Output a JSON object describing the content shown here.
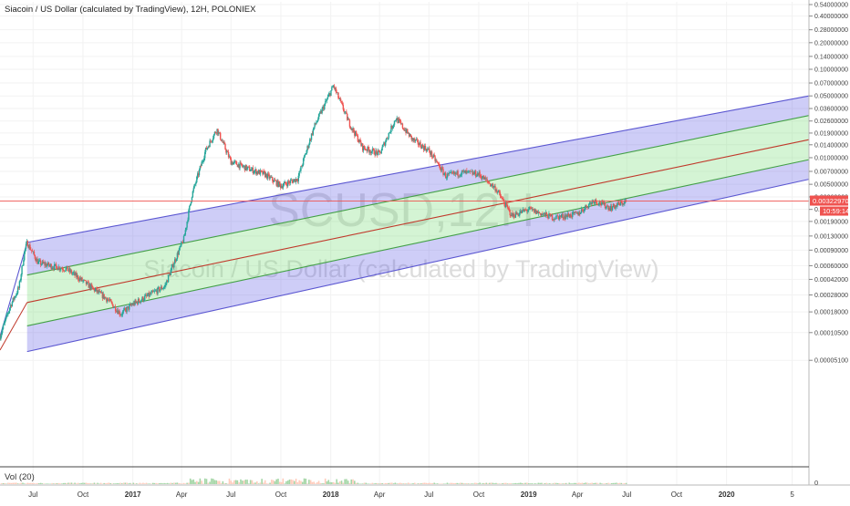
{
  "header": {
    "title": "Siacoin / US Dollar (calculated by TradingView), 12H, POLONIEX"
  },
  "watermark": {
    "symbol": "SCUSD,12H",
    "name": "Siacoin / US Dollar (calculated by TradingView)"
  },
  "price_tags": {
    "last_price": "0.00322970",
    "countdown": "10:59:14",
    "last_color": "#ef5350"
  },
  "volume_pane": {
    "label": "Vol (20)",
    "zero_label": "0"
  },
  "colors": {
    "channel_outer": "#5b57d1",
    "channel_inner": "#43a047",
    "channel_mid": "#c0392b",
    "candle_up": "#26a69a",
    "candle_down": "#ef5350",
    "outer_fill": "rgba(92,88,230,0.30)",
    "inner_fill": "rgba(120,220,120,0.32)"
  },
  "chart_data": {
    "type": "candlestick",
    "symbol": "SCUSD",
    "interval": "12H",
    "exchange": "POLONIEX",
    "y_scale": "log",
    "ylim": [
      3.5e-06,
      0.58
    ],
    "y_ticks": [
      "0.54000000",
      "0.40000000",
      "0.28000000",
      "0.20000000",
      "0.14000000",
      "0.10000000",
      "0.07000000",
      "0.05000000",
      "0.03600000",
      "0.02600000",
      "0.01900000",
      "0.01400000",
      "0.01000000",
      "0.00700000",
      "0.00500000",
      "0.00360000",
      "0.00260000",
      "0.00190000",
      "0.00130000",
      "0.00090000",
      "0.00060000",
      "0.00042000",
      "0.00028000",
      "0.00018000",
      "0.00010500",
      "0.00005100"
    ],
    "x_ticks": [
      {
        "label": "Jul",
        "date": "2016-07-01"
      },
      {
        "label": "Oct",
        "date": "2016-10-01"
      },
      {
        "label": "2017",
        "date": "2017-01-01"
      },
      {
        "label": "Apr",
        "date": "2017-04-01"
      },
      {
        "label": "Jul",
        "date": "2017-07-01"
      },
      {
        "label": "Oct",
        "date": "2017-10-01"
      },
      {
        "label": "2018",
        "date": "2018-01-01"
      },
      {
        "label": "Apr",
        "date": "2018-04-01"
      },
      {
        "label": "Jul",
        "date": "2018-07-01"
      },
      {
        "label": "Oct",
        "date": "2018-10-01"
      },
      {
        "label": "2019",
        "date": "2019-01-01"
      },
      {
        "label": "Apr",
        "date": "2019-04-01"
      },
      {
        "label": "Jul",
        "date": "2019-07-01"
      },
      {
        "label": "Oct",
        "date": "2019-10-01"
      },
      {
        "label": "2020",
        "date": "2020-01-01"
      },
      {
        "label": "5",
        "date": "2020-05-01"
      }
    ],
    "xlim": [
      "2016-05-01",
      "2020-06-01"
    ],
    "price_path": [
      {
        "date": "2016-05-01",
        "close": 9.5e-05
      },
      {
        "date": "2016-05-20",
        "close": 0.00021
      },
      {
        "date": "2016-06-05",
        "close": 0.00034
      },
      {
        "date": "2016-06-15",
        "close": 0.00085
      },
      {
        "date": "2016-06-20",
        "close": 0.0011
      },
      {
        "date": "2016-07-10",
        "close": 0.00065
      },
      {
        "date": "2016-08-01",
        "close": 0.0006
      },
      {
        "date": "2016-09-01",
        "close": 0.00055
      },
      {
        "date": "2016-10-01",
        "close": 0.0004
      },
      {
        "date": "2016-11-15",
        "close": 0.00025
      },
      {
        "date": "2016-12-10",
        "close": 0.00017
      },
      {
        "date": "2017-01-01",
        "close": 0.00022
      },
      {
        "date": "2017-02-01",
        "close": 0.00028
      },
      {
        "date": "2017-03-01",
        "close": 0.00035
      },
      {
        "date": "2017-03-20",
        "close": 0.0007
      },
      {
        "date": "2017-04-05",
        "close": 0.0012
      },
      {
        "date": "2017-04-20",
        "close": 0.0038
      },
      {
        "date": "2017-05-15",
        "close": 0.012
      },
      {
        "date": "2017-06-05",
        "close": 0.021
      },
      {
        "date": "2017-07-01",
        "close": 0.009
      },
      {
        "date": "2017-08-01",
        "close": 0.0075
      },
      {
        "date": "2017-09-01",
        "close": 0.0065
      },
      {
        "date": "2017-10-01",
        "close": 0.0048
      },
      {
        "date": "2017-11-01",
        "close": 0.0058
      },
      {
        "date": "2017-12-01",
        "close": 0.022
      },
      {
        "date": "2018-01-06",
        "close": 0.065
      },
      {
        "date": "2018-02-05",
        "close": 0.024
      },
      {
        "date": "2018-03-01",
        "close": 0.013
      },
      {
        "date": "2018-04-01",
        "close": 0.011
      },
      {
        "date": "2018-05-01",
        "close": 0.028
      },
      {
        "date": "2018-06-01",
        "close": 0.016
      },
      {
        "date": "2018-07-01",
        "close": 0.012
      },
      {
        "date": "2018-08-01",
        "close": 0.0062
      },
      {
        "date": "2018-09-01",
        "close": 0.0068
      },
      {
        "date": "2018-10-01",
        "close": 0.0065
      },
      {
        "date": "2018-11-01",
        "close": 0.0045
      },
      {
        "date": "2018-12-01",
        "close": 0.0022
      },
      {
        "date": "2019-01-01",
        "close": 0.0026
      },
      {
        "date": "2019-02-15",
        "close": 0.0021
      },
      {
        "date": "2019-04-01",
        "close": 0.0023
      },
      {
        "date": "2019-05-01",
        "close": 0.0033
      },
      {
        "date": "2019-06-01",
        "close": 0.0027
      },
      {
        "date": "2019-07-01",
        "close": 0.00323
      }
    ],
    "regression_channel": {
      "start_date": "2016-06-20",
      "end_date": "2020-06-01",
      "upper_outer": [
        0.0011,
        0.05
      ],
      "upper_inner": [
        0.00047,
        0.03
      ],
      "mid": [
        0.00023,
        0.016
      ],
      "lower_inner": [
        0.000125,
        0.0095
      ],
      "lower_outer": [
        6.4e-05,
        0.0057
      ]
    },
    "last_price": 0.0032297
  }
}
